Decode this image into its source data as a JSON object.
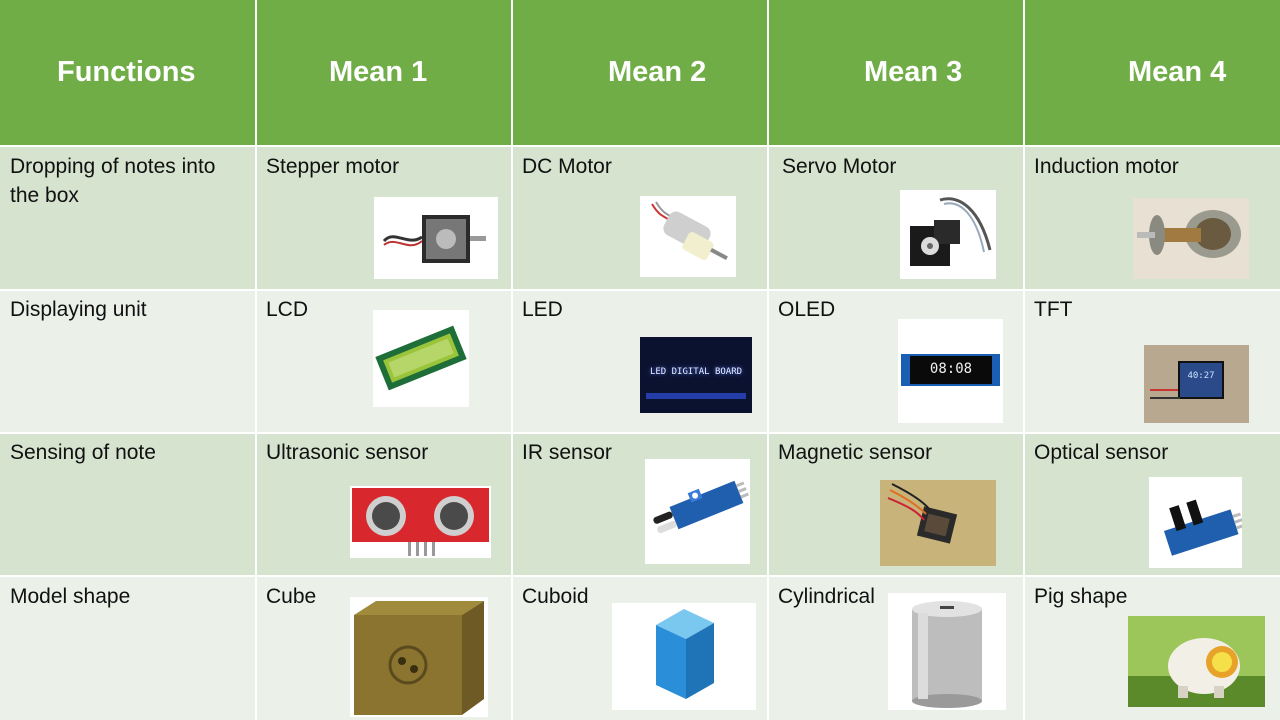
{
  "headers": [
    "Functions",
    "Mean 1",
    "Mean 2",
    "Mean 3",
    "Mean 4"
  ],
  "rows": [
    {
      "function": "Dropping of notes into the box",
      "means": [
        "Stepper motor",
        "DC Motor",
        "Servo Motor",
        "Induction motor"
      ]
    },
    {
      "function": "Displaying unit",
      "means": [
        "LCD",
        "LED",
        "OLED",
        "TFT"
      ]
    },
    {
      "function": "Sensing of note",
      "means": [
        "Ultrasonic sensor",
        "IR sensor",
        "Magnetic sensor",
        "Optical sensor"
      ]
    },
    {
      "function": "Model shape",
      "means": [
        "Cube",
        "Cuboid",
        "Cylindrical",
        "Pig shape"
      ]
    }
  ],
  "images": {
    "led_board_text": "LED DIGITAL BOARD",
    "oled_text": "08:08",
    "tft_text": "40:27"
  },
  "colors": {
    "header": "#70ad47",
    "row_odd": "#d5e3cf",
    "row_even": "#ebf1e9"
  }
}
